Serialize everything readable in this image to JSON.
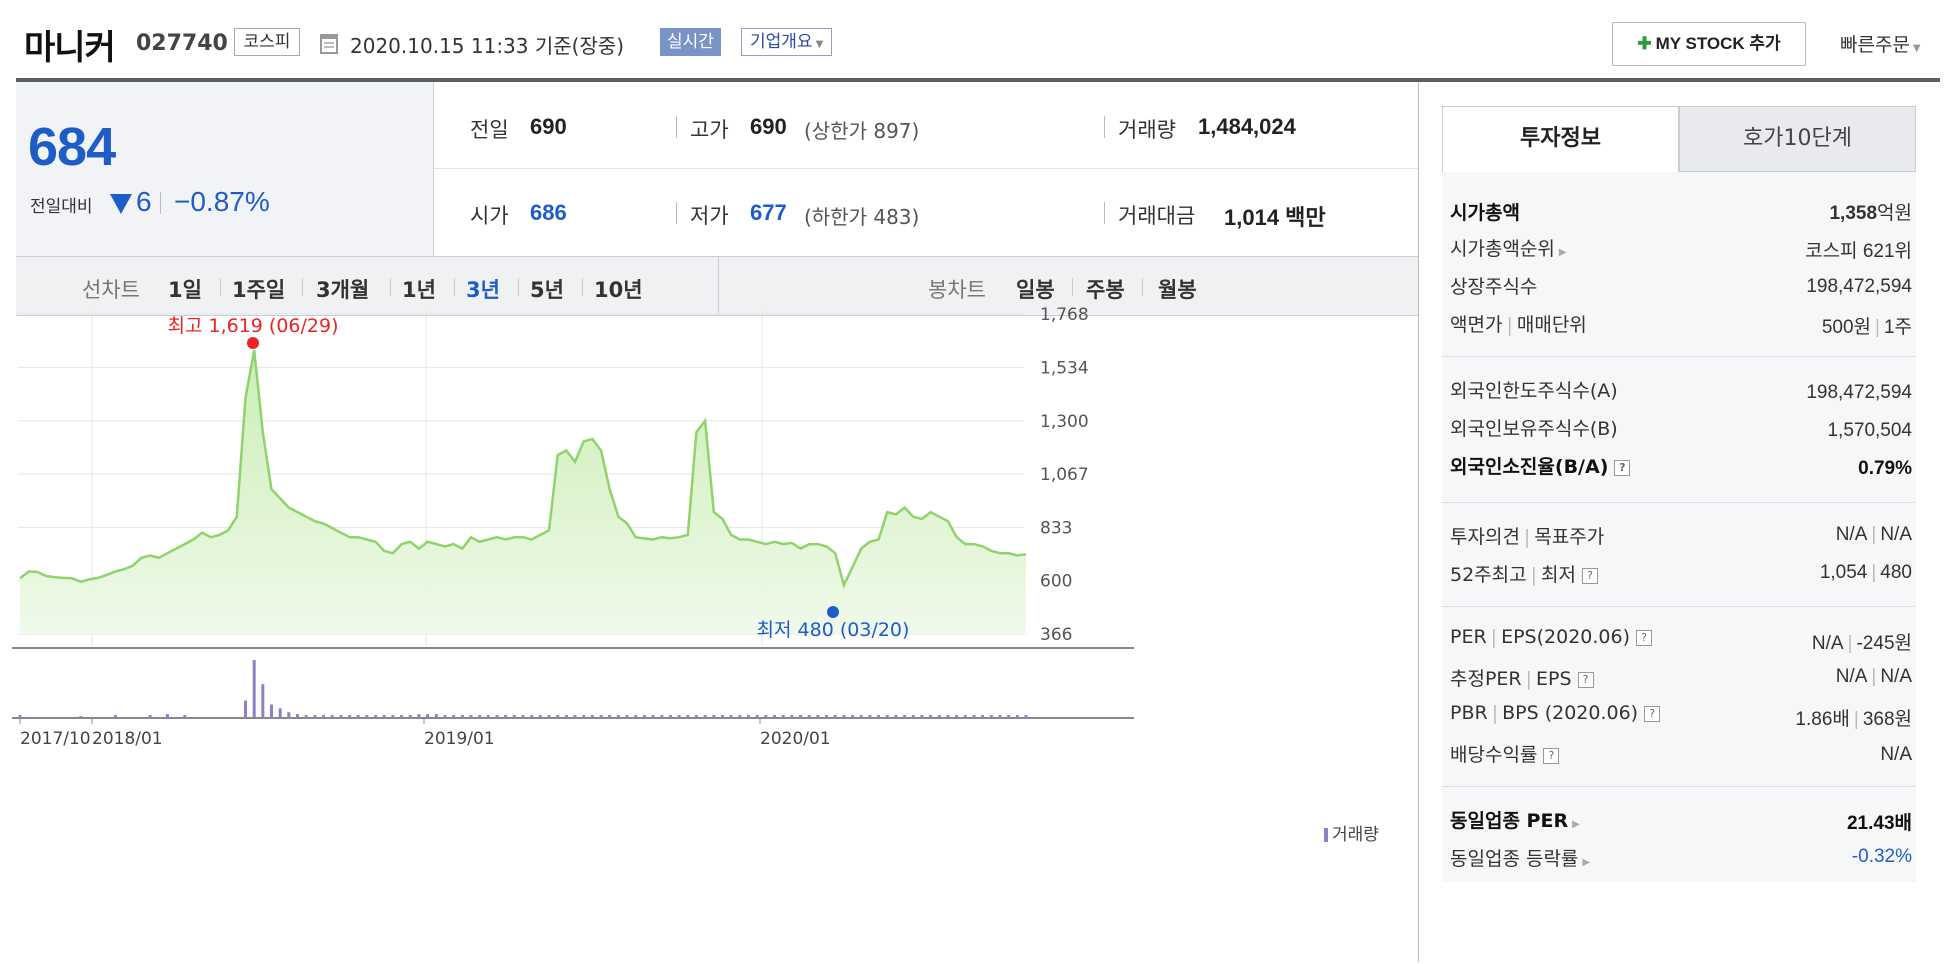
{
  "header": {
    "stock_name": "마니커",
    "stock_code": "027740",
    "market": "코스피",
    "datetime": "2020.10.15 11:33  기준(장중)",
    "realtime_badge": "실시간",
    "overview_button": "기업개요",
    "mystock_button": "MY STOCK 추가",
    "quick_order": "빠른주문"
  },
  "price": {
    "current": "684",
    "change_label": "전일대비",
    "change_value": "6",
    "change_percent": "−0.87%"
  },
  "quote": {
    "prev_label": "전일",
    "prev": "690",
    "high_label": "고가",
    "high": "690",
    "upper_limit": "(상한가 897)",
    "volume_label": "거래량",
    "volume": "1,484,024",
    "open_label": "시가",
    "open": "686",
    "low_label": "저가",
    "low": "677",
    "lower_limit": "(하한가 483)",
    "amount_label": "거래대금",
    "amount": "1,014 백만"
  },
  "chart_tabs": {
    "line_label": "선차트",
    "line_periods": [
      "1일",
      "1주일",
      "3개월",
      "1년",
      "3년",
      "5년",
      "10년"
    ],
    "selected": "3년",
    "candle_label": "봉차트",
    "candle_periods": [
      "일봉",
      "주봉",
      "월봉"
    ]
  },
  "chart_data": {
    "type": "area",
    "x_tick_labels": [
      "2017/10",
      "2018/01",
      "2019/01",
      "2020/01"
    ],
    "y_tick_labels": [
      "1,768",
      "1,534",
      "1,300",
      "1,067",
      "833",
      "600",
      "366"
    ],
    "ylim": [
      366,
      1768
    ],
    "grid": true,
    "color": "#8fd36a",
    "max_annotation": "최고 1,619 (06/29)",
    "min_annotation": "최저 480 (03/20)",
    "volume_legend": "거래량",
    "series": [
      {
        "values": [
          610,
          640,
          638,
          620,
          615,
          612,
          610,
          595,
          605,
          612,
          625,
          640,
          650,
          665,
          700,
          710,
          700,
          720,
          740,
          760,
          780,
          810,
          790,
          800,
          820,
          880,
          1400,
          1610,
          1250,
          1000,
          960,
          920,
          900,
          880,
          860,
          850,
          830,
          810,
          790,
          790,
          780,
          770,
          730,
          720,
          760,
          770,
          740,
          770,
          760,
          750,
          760,
          740,
          790,
          770,
          780,
          790,
          780,
          790,
          790,
          780,
          800,
          820,
          1150,
          1170,
          1120,
          1210,
          1220,
          1170,
          1000,
          880,
          850,
          790,
          785,
          780,
          790,
          785,
          790,
          800,
          1250,
          1300,
          900,
          870,
          800,
          780,
          780,
          770,
          760,
          770,
          760,
          765,
          740,
          760,
          760,
          750,
          720,
          580,
          660,
          740,
          770,
          780,
          900,
          890,
          920,
          880,
          870,
          900,
          880,
          860,
          790,
          760,
          760,
          750,
          730,
          720,
          720,
          710,
          715
        ]
      },
      {
        "name": "거래량",
        "values": [
          3,
          0,
          0,
          0,
          0,
          0,
          0,
          2,
          0,
          0,
          0,
          3,
          0,
          0,
          0,
          3,
          0,
          4,
          0,
          3,
          0,
          0,
          0,
          0,
          0,
          0,
          18,
          60,
          35,
          14,
          10,
          6,
          4,
          3,
          3,
          3,
          3,
          3,
          3,
          3,
          3,
          3,
          3,
          3,
          3,
          3,
          4,
          4,
          4,
          3,
          3,
          3,
          3,
          3,
          3,
          3,
          3,
          3,
          3,
          3,
          3,
          3,
          3,
          3,
          3,
          3,
          3,
          3,
          3,
          3,
          3,
          3,
          3,
          3,
          3,
          3,
          3,
          3,
          3,
          3,
          3,
          3,
          3,
          3,
          3,
          3,
          3,
          3,
          3,
          3,
          3,
          3,
          3,
          3,
          3,
          3,
          3,
          3,
          3,
          3,
          3,
          3,
          3,
          3,
          3,
          3,
          3,
          3,
          3,
          3,
          3,
          3,
          3,
          3,
          3,
          3,
          3
        ]
      }
    ]
  },
  "invest": {
    "tab_active": "투자정보",
    "tab_other": "호가10단계",
    "market_cap_label": "시가총액",
    "market_cap_num": "1,358",
    "market_cap_unit": "억원",
    "rank_label": "시가총액순위",
    "rank": "코스피 621위",
    "shares_label": "상장주식수",
    "shares": "198,472,594",
    "par_label": "액면가",
    "unit_label": "매매단위",
    "par": "500원",
    "unit": "1주",
    "foreign_limit_label": "외국인한도주식수(A)",
    "foreign_limit": "198,472,594",
    "foreign_hold_label": "외국인보유주식수(B)",
    "foreign_hold": "1,570,504",
    "foreign_ratio_label": "외국인소진율(B/A)",
    "foreign_ratio": "0.79%",
    "opinion_label": "투자의견",
    "target_label": "목표주가",
    "opinion": "N/A",
    "target": "N/A",
    "w52_label": "52주최고",
    "w52_low_label": "최저",
    "w52_high": "1,054",
    "w52_low": "480",
    "per_label": "PER",
    "eps_label": "EPS(2020.06)",
    "per": "N/A",
    "eps": "-245원",
    "est_per_label": "추정PER",
    "est_eps_label": "EPS",
    "est_per": "N/A",
    "est_eps": "N/A",
    "pbr_label": "PBR",
    "bps_label": "BPS (2020.06)",
    "pbr": "1.86배",
    "bps": "368원",
    "dividend_label": "배당수익률",
    "dividend": "N/A",
    "sector_per_label": "동일업종 PER",
    "sector_per": "21.43배",
    "sector_chg_label": "동일업종 등락률",
    "sector_chg": "-0.32%"
  }
}
